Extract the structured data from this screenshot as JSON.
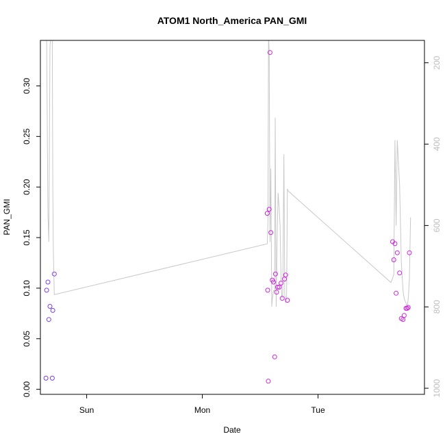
{
  "chart_data": {
    "type": "scatter",
    "title": "ATOM1 North_America PAN_GMI",
    "xlabel": "Date",
    "ylabel": "PAN_GMI",
    "x_ticks": [
      "Sun",
      "Mon",
      "Tue"
    ],
    "x_tick_days": [
      1,
      2,
      3
    ],
    "xlim_days": [
      0.6,
      3.92
    ],
    "ylim": [
      -0.005,
      0.345
    ],
    "y_ticks": [
      0.0,
      0.05,
      0.1,
      0.15,
      0.2,
      0.25,
      0.3
    ],
    "y_tick_labels": [
      "0.00",
      "0.05",
      "0.10",
      "0.15",
      "0.20",
      "0.25",
      "0.30"
    ],
    "y2_ticks": [
      200,
      400,
      600,
      800,
      1000
    ],
    "y2_tick_labels": [
      "200",
      "400",
      "600",
      "800",
      "1000"
    ],
    "y2lim": [
      1015,
      145
    ],
    "grid": false,
    "series": [
      {
        "type": "scatter",
        "points": [
          {
            "x": 0.648,
            "y": 0.011,
            "color": "#7a3cf0"
          },
          {
            "x": 0.654,
            "y": 0.098,
            "color": "#7a3cf0"
          },
          {
            "x": 0.665,
            "y": 0.106,
            "color": "#7a3cf0"
          },
          {
            "x": 0.673,
            "y": 0.069,
            "color": "#7a3cf0"
          },
          {
            "x": 0.683,
            "y": 0.082,
            "color": "#7a3cf0"
          },
          {
            "x": 0.703,
            "y": 0.011,
            "color": "#7a3cf0"
          },
          {
            "x": 0.707,
            "y": 0.078,
            "color": "#7a3cf0"
          },
          {
            "x": 0.72,
            "y": 0.114,
            "color": "#7a3cf0"
          },
          {
            "x": 2.561,
            "y": 0.174,
            "color": "#cc22dd"
          },
          {
            "x": 2.565,
            "y": 0.098,
            "color": "#cc22dd"
          },
          {
            "x": 2.57,
            "y": 0.008,
            "color": "#cc22dd"
          },
          {
            "x": 2.578,
            "y": 0.178,
            "color": "#cc22dd"
          },
          {
            "x": 2.585,
            "y": 0.333,
            "color": "#cc22dd"
          },
          {
            "x": 2.592,
            "y": 0.155,
            "color": "#cc22dd"
          },
          {
            "x": 2.605,
            "y": 0.108,
            "color": "#cc22dd"
          },
          {
            "x": 2.615,
            "y": 0.106,
            "color": "#cc22dd"
          },
          {
            "x": 2.625,
            "y": 0.032,
            "color": "#cc22dd"
          },
          {
            "x": 2.632,
            "y": 0.114,
            "color": "#cc22dd"
          },
          {
            "x": 2.642,
            "y": 0.096,
            "color": "#cc22dd"
          },
          {
            "x": 2.65,
            "y": 0.101,
            "color": "#cc22dd"
          },
          {
            "x": 2.665,
            "y": 0.101,
            "color": "#cc22dd"
          },
          {
            "x": 2.68,
            "y": 0.105,
            "color": "#cc22dd"
          },
          {
            "x": 2.69,
            "y": 0.09,
            "color": "#cc22dd"
          },
          {
            "x": 2.71,
            "y": 0.109,
            "color": "#cc22dd"
          },
          {
            "x": 2.72,
            "y": 0.113,
            "color": "#cc22dd"
          },
          {
            "x": 2.735,
            "y": 0.088,
            "color": "#cc22dd"
          },
          {
            "x": 3.645,
            "y": 0.146,
            "color": "#cc22dd"
          },
          {
            "x": 3.655,
            "y": 0.128,
            "color": "#cc22dd"
          },
          {
            "x": 3.665,
            "y": 0.144,
            "color": "#cc22dd"
          },
          {
            "x": 3.675,
            "y": 0.095,
            "color": "#cc22dd"
          },
          {
            "x": 3.685,
            "y": 0.135,
            "color": "#cc22dd"
          },
          {
            "x": 3.705,
            "y": 0.115,
            "color": "#cc22dd"
          },
          {
            "x": 3.72,
            "y": 0.07,
            "color": "#cc22dd"
          },
          {
            "x": 3.735,
            "y": 0.069,
            "color": "#cc22dd"
          },
          {
            "x": 3.745,
            "y": 0.073,
            "color": "#cc22dd"
          },
          {
            "x": 3.76,
            "y": 0.08,
            "color": "#cc22dd"
          },
          {
            "x": 3.77,
            "y": 0.08,
            "color": "#cc22dd"
          },
          {
            "x": 3.78,
            "y": 0.081,
            "color": "#cc22dd"
          },
          {
            "x": 3.79,
            "y": 0.135,
            "color": "#cc22dd"
          }
        ]
      },
      {
        "type": "line",
        "axis": "right",
        "color": "#c8c8c8",
        "x": [
          0.648,
          0.654,
          0.665,
          0.673,
          0.683,
          0.695,
          0.703,
          0.707,
          0.712,
          0.72,
          2.561,
          2.567,
          2.572,
          2.578,
          2.585,
          2.592,
          2.6,
          2.605,
          2.615,
          2.625,
          2.63,
          2.638,
          2.645,
          2.655,
          2.665,
          2.672,
          2.68,
          2.688,
          2.695,
          2.705,
          2.712,
          2.72,
          2.728,
          2.735,
          2.742,
          3.63,
          3.645,
          3.655,
          3.665,
          3.675,
          3.685,
          3.705,
          3.72,
          3.735,
          3.745,
          3.76,
          3.77,
          3.78,
          3.79,
          3.8
        ],
        "y": [
          130,
          140,
          570,
          640,
          160,
          110,
          150,
          500,
          660,
          770,
          645,
          590,
          130,
          170,
          640,
          460,
          800,
          780,
          760,
          760,
          335,
          800,
          650,
          520,
          560,
          600,
          730,
          780,
          770,
          425,
          770,
          790,
          780,
          510,
          515,
          740,
          730,
          720,
          390,
          600,
          390,
          500,
          690,
          760,
          780,
          790,
          800,
          780,
          730,
          580
        ]
      }
    ]
  }
}
